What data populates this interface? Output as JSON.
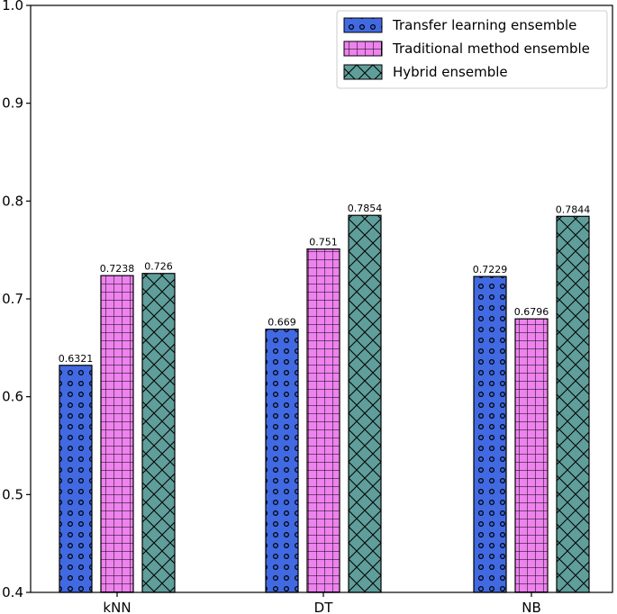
{
  "chart_data": {
    "type": "bar",
    "title": "",
    "xlabel": "",
    "ylabel": "",
    "ylim": [
      0.4,
      1.0
    ],
    "yticks": [
      "0.4",
      "0.5",
      "0.6",
      "0.7",
      "0.8",
      "0.9",
      "1.0"
    ],
    "categories": [
      "kNN",
      "DT",
      "NB"
    ],
    "series": [
      {
        "name": "Transfer learning ensemble",
        "color": "#4169e1",
        "pattern": "circles",
        "values": [
          0.6321,
          0.669,
          0.7229
        ],
        "labels": [
          "0.6321",
          "0.669",
          "0.7229"
        ]
      },
      {
        "name": "Traditional method ensemble",
        "color": "#ee82ee",
        "pattern": "grid",
        "values": [
          0.7238,
          0.751,
          0.6796
        ],
        "labels": [
          "0.7238",
          "0.751",
          "0.6796"
        ]
      },
      {
        "name": "Hybrid ensemble",
        "color": "#5f9e9a",
        "pattern": "crosshatch",
        "values": [
          0.726,
          0.7854,
          0.7844
        ],
        "labels": [
          "0.726",
          "0.7854",
          "0.7844"
        ]
      }
    ],
    "legend_position": "top-right",
    "grid": false
  }
}
